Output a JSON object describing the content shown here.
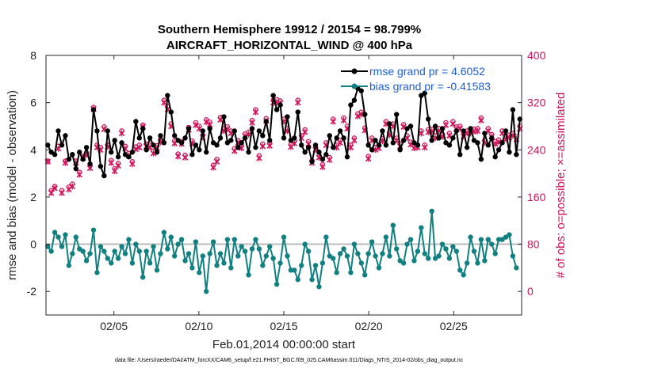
{
  "chart_data": {
    "type": "line",
    "title_line1": "Southern Hemisphere 19912 / 20154 = 98.799%",
    "title_line2": "AIRCRAFT_HORIZONTAL_WIND @ 400 hPa",
    "xlabel": "Feb.01,2014 00:00:00 start",
    "ylabel_left": "rmse and bias (model - observation)",
    "ylabel_right": "# of obs: o=possible; ×=assimilated",
    "footnote": "data file: /Users/raeder/DAI/ATM_forcXX/CAM6_setup/f.e21.FHIST_BGC.f09_025.CAM6assim.011/Diags_NTrS_2014-02/obs_diag_output.nc",
    "x_range": [
      1,
      29
    ],
    "y_left_range": [
      -3,
      8
    ],
    "y_right_range": [
      -40,
      400
    ],
    "x_tick_values": [
      5,
      10,
      15,
      20,
      25
    ],
    "x_tick_labels": [
      "02/05",
      "02/10",
      "02/15",
      "02/20",
      "02/25"
    ],
    "y_left_ticks": [
      "8",
      "6",
      "4",
      "2",
      "0",
      "-2"
    ],
    "y_left_tick_values": [
      8,
      6,
      4,
      2,
      0,
      -2
    ],
    "y_right_ticks": [
      "400",
      "320",
      "240",
      "160",
      "80",
      "0"
    ],
    "y_right_tick_values": [
      400,
      320,
      240,
      160,
      80,
      0
    ],
    "legend": {
      "rmse": "rmse grand pr = 4.6052",
      "bias": "bias grand pr = -0.41583"
    },
    "colors": {
      "rmse": "#000000",
      "bias": "#128080",
      "obs": "#d1145a",
      "zero_line": "#bbbbbb"
    },
    "rmse_series": [
      4.2,
      3.9,
      3.8,
      4.8,
      4.2,
      4.6,
      3.6,
      3.8,
      3.2,
      3.9,
      3.6,
      4.1,
      3.4,
      5.7,
      4.8,
      3.3,
      2.9,
      4.8,
      3.9,
      4.4,
      3.7,
      4.3,
      3.8,
      3.7,
      3.9,
      5.2,
      4.5,
      4.9,
      4.0,
      4.5,
      4.2,
      3.9,
      4.6,
      4.3,
      6.3,
      5.6,
      4.6,
      4.4,
      4.3,
      4.5,
      4.9,
      3.8,
      4.2,
      4.0,
      4.8,
      3.9,
      4.9,
      4.3,
      4.2,
      4.5,
      5.4,
      4.3,
      4.4,
      4.8,
      4.1,
      4.3,
      4.5,
      3.9,
      4.9,
      4.1,
      4.8,
      4.6,
      5.2,
      4.4,
      6.3,
      5.7,
      5.9,
      4.5,
      5.4,
      4.4,
      4.5,
      5.6,
      4.2,
      3.9,
      4.1,
      3.5,
      4.2,
      3.9,
      3.6,
      3.8,
      4.6,
      4.1,
      4.5,
      4.8,
      4.5,
      3.7,
      5.9,
      6.1,
      6.6,
      6.5,
      5.5,
      4.2,
      4.0,
      4.4,
      4.2,
      4.8,
      4.2,
      5.1,
      4.3,
      5.5,
      4.0,
      4.4,
      4.9,
      5.0,
      4.3,
      4.2,
      6.3,
      6.4,
      5.3,
      4.4,
      5.0,
      4.5,
      4.9,
      4.3,
      4.2,
      4.5,
      4.8,
      3.8,
      4.8,
      4.1,
      4.9,
      4.4,
      4.3,
      3.6,
      4.7,
      4.2,
      4.5,
      3.7,
      4.0,
      4.3,
      4.8,
      3.9,
      5.7,
      3.8,
      5.3
    ],
    "bias_series": [
      -0.1,
      -0.3,
      0.5,
      0.3,
      -0.1,
      0.4,
      -0.9,
      -0.4,
      0.3,
      -0.2,
      -0.3,
      -0.7,
      -0.4,
      0.6,
      -1.2,
      -0.1,
      -0.3,
      -0.6,
      -0.8,
      -0.3,
      -0.6,
      -0.1,
      -0.4,
      0.2,
      -0.8,
      0.0,
      -0.3,
      -1.4,
      -0.3,
      -0.8,
      -0.1,
      -1.1,
      -0.4,
      0.5,
      -0.2,
      0.3,
      -0.5,
      0.0,
      0.2,
      -0.7,
      -0.4,
      -1.0,
      0.1,
      -1.2,
      -0.5,
      -2.0,
      -0.4,
      0.1,
      -0.9,
      -0.4,
      -0.8,
      0.2,
      -1.0,
      0.2,
      -0.5,
      -0.1,
      -0.3,
      -1.3,
      -0.2,
      0.2,
      -0.2,
      -0.9,
      -0.5,
      -0.1,
      -0.6,
      -1.7,
      -0.8,
      0.3,
      -0.5,
      -1.1,
      -1.1,
      -1.5,
      -0.9,
      0.0,
      -0.3,
      -1.5,
      -0.9,
      -1.8,
      -0.8,
      0.3,
      -0.5,
      -0.6,
      -1.2,
      -0.4,
      -0.2,
      -0.5,
      -1.2,
      0.0,
      -0.4,
      -0.8,
      -1.3,
      -0.4,
      0.1,
      -0.5,
      -1.0,
      -0.4,
      0.3,
      -0.5,
      0.8,
      -0.2,
      -0.7,
      -0.8,
      0.0,
      0.2,
      -0.7,
      -0.3,
      0.7,
      -0.4,
      -0.6,
      1.4,
      -0.6,
      -0.5,
      0.0,
      -0.2,
      -0.6,
      -0.1,
      -0.3,
      -1.1,
      -1.3,
      -0.8,
      0.3,
      -0.3,
      -0.8,
      0.2,
      -0.7,
      0.2,
      0.0,
      -0.4,
      0.2,
      0.2,
      0.3,
      0.4,
      -0.5,
      -1.0
    ],
    "obs_possible": [
      221,
      171,
      178,
      246,
      171,
      221,
      177,
      182,
      221,
      202,
      229,
      235,
      213,
      312,
      248,
      244,
      279,
      248,
      222,
      208,
      217,
      272,
      246,
      234,
      220,
      245,
      248,
      282,
      250,
      248,
      238,
      247,
      257,
      324,
      313,
      284,
      255,
      233,
      254,
      231,
      278,
      255,
      286,
      280,
      265,
      291,
      287,
      214,
      224,
      295,
      276,
      279,
      272,
      242,
      256,
      247,
      267,
      270,
      290,
      308,
      230,
      250,
      293,
      251,
      324,
      325,
      323,
      292,
      276,
      249,
      255,
      324,
      264,
      274,
      254,
      222,
      244,
      231,
      215,
      252,
      227,
      292,
      248,
      256,
      294,
      280,
      248,
      260,
      301,
      304,
      277,
      229,
      260,
      244,
      247,
      259,
      288,
      269,
      284,
      260,
      250,
      283,
      264,
      253,
      247,
      248,
      272,
      248,
      274,
      275,
      264,
      276,
      266,
      286,
      268,
      288,
      279,
      280,
      267,
      272,
      272,
      275,
      276,
      294,
      256,
      276,
      266,
      254,
      257,
      272,
      262,
      265,
      268,
      262,
      280
    ],
    "obs_assimilated": [
      220,
      167,
      175,
      242,
      167,
      218,
      173,
      178,
      218,
      198,
      226,
      231,
      209,
      309,
      244,
      240,
      275,
      245,
      218,
      204,
      213,
      268,
      242,
      230,
      216,
      241,
      244,
      279,
      246,
      244,
      234,
      243,
      253,
      320,
      309,
      280,
      251,
      229,
      250,
      227,
      274,
      251,
      282,
      276,
      261,
      287,
      283,
      210,
      220,
      291,
      272,
      275,
      268,
      238,
      252,
      243,
      263,
      266,
      286,
      304,
      226,
      246,
      289,
      247,
      320,
      321,
      319,
      288,
      272,
      245,
      251,
      320,
      260,
      270,
      250,
      218,
      240,
      227,
      211,
      248,
      223,
      288,
      244,
      252,
      290,
      276,
      244,
      256,
      297,
      300,
      273,
      225,
      256,
      240,
      243,
      255,
      284,
      265,
      280,
      256,
      246,
      279,
      260,
      249,
      243,
      244,
      268,
      244,
      270,
      271,
      260,
      272,
      262,
      282,
      264,
      284,
      275,
      276,
      263,
      268,
      268,
      271,
      272,
      290,
      252,
      272,
      262,
      250,
      253,
      268,
      258,
      261,
      264,
      258,
      276
    ]
  }
}
